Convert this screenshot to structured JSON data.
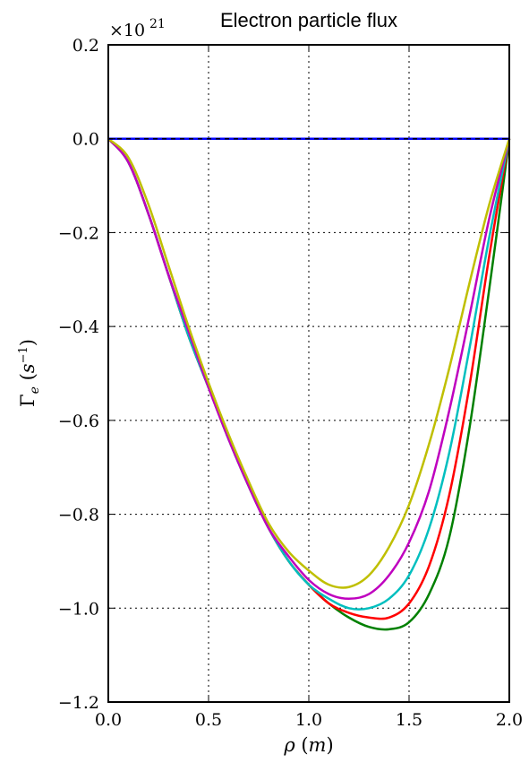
{
  "chart_data": {
    "type": "line",
    "title": "Electron particle flux",
    "xlabel": "ρ (m)",
    "ylabel": "Γe (s⁻¹)",
    "xlim": [
      0.0,
      2.0
    ],
    "ylim": [
      -1.2,
      0.2
    ],
    "y_scale_label": "×10^21",
    "x_ticks": [
      0.0,
      0.5,
      1.0,
      1.5,
      2.0
    ],
    "x_tick_labels": [
      "0.0",
      "0.5",
      "1.0",
      "1.5",
      "2.0"
    ],
    "y_ticks": [
      0.2,
      0.0,
      -0.2,
      -0.4,
      -0.6,
      -0.8,
      -1.0,
      -1.2
    ],
    "y_tick_labels": [
      "0.2",
      "0.0",
      "−0.2",
      "−0.4",
      "−0.6",
      "−0.8",
      "−1.0",
      "−1.2"
    ],
    "grid": true,
    "series": [
      {
        "color": "#0000ff",
        "dashed": false,
        "x": [
          0.0,
          2.0
        ],
        "y": [
          0.0,
          0.0
        ]
      },
      {
        "color": "#000000",
        "dashed": true,
        "x": [
          0.0,
          2.0
        ],
        "y": [
          0.0,
          0.0
        ]
      },
      {
        "color": "#008000",
        "dashed": false,
        "x": [
          0.0,
          0.1,
          0.2,
          0.3,
          0.4,
          0.5,
          0.6,
          0.7,
          0.8,
          0.9,
          1.0,
          1.1,
          1.2,
          1.3,
          1.4,
          1.5,
          1.6,
          1.7,
          1.8,
          1.9,
          2.0
        ],
        "y": [
          0.0,
          -0.05,
          -0.16,
          -0.29,
          -0.42,
          -0.53,
          -0.64,
          -0.74,
          -0.83,
          -0.9,
          -0.95,
          -0.99,
          -1.02,
          -1.04,
          -1.045,
          -1.03,
          -0.97,
          -0.85,
          -0.62,
          -0.32,
          0.0
        ]
      },
      {
        "color": "#ff0000",
        "dashed": false,
        "x": [
          0.0,
          0.1,
          0.2,
          0.3,
          0.4,
          0.5,
          0.6,
          0.7,
          0.8,
          0.9,
          1.0,
          1.1,
          1.2,
          1.3,
          1.4,
          1.5,
          1.6,
          1.7,
          1.8,
          1.9,
          2.0
        ],
        "y": [
          0.0,
          -0.05,
          -0.16,
          -0.29,
          -0.42,
          -0.53,
          -0.64,
          -0.74,
          -0.83,
          -0.9,
          -0.95,
          -0.99,
          -1.01,
          -1.02,
          -1.02,
          -0.99,
          -0.91,
          -0.76,
          -0.53,
          -0.25,
          0.0
        ]
      },
      {
        "color": "#00bfbf",
        "dashed": false,
        "x": [
          0.0,
          0.1,
          0.2,
          0.3,
          0.4,
          0.5,
          0.6,
          0.7,
          0.8,
          0.9,
          1.0,
          1.1,
          1.2,
          1.3,
          1.4,
          1.5,
          1.6,
          1.7,
          1.8,
          1.9,
          2.0
        ],
        "y": [
          0.0,
          -0.05,
          -0.16,
          -0.29,
          -0.42,
          -0.53,
          -0.64,
          -0.74,
          -0.83,
          -0.9,
          -0.95,
          -0.98,
          -1.0,
          -1.0,
          -0.98,
          -0.93,
          -0.83,
          -0.67,
          -0.45,
          -0.21,
          0.0
        ]
      },
      {
        "color": "#bf00bf",
        "dashed": false,
        "x": [
          0.0,
          0.1,
          0.2,
          0.3,
          0.4,
          0.5,
          0.6,
          0.7,
          0.8,
          0.9,
          1.0,
          1.1,
          1.2,
          1.3,
          1.4,
          1.5,
          1.6,
          1.7,
          1.8,
          1.9,
          2.0
        ],
        "y": [
          0.0,
          -0.05,
          -0.16,
          -0.29,
          -0.41,
          -0.53,
          -0.64,
          -0.74,
          -0.83,
          -0.89,
          -0.94,
          -0.97,
          -0.98,
          -0.97,
          -0.93,
          -0.86,
          -0.75,
          -0.58,
          -0.38,
          -0.17,
          0.0
        ]
      },
      {
        "color": "#bfbf00",
        "dashed": false,
        "x": [
          0.0,
          0.1,
          0.2,
          0.3,
          0.4,
          0.5,
          0.6,
          0.7,
          0.8,
          0.9,
          1.0,
          1.1,
          1.2,
          1.3,
          1.4,
          1.5,
          1.6,
          1.7,
          1.8,
          1.9,
          2.0
        ],
        "y": [
          0.0,
          -0.04,
          -0.14,
          -0.27,
          -0.4,
          -0.52,
          -0.63,
          -0.73,
          -0.82,
          -0.88,
          -0.92,
          -0.95,
          -0.955,
          -0.93,
          -0.87,
          -0.78,
          -0.65,
          -0.49,
          -0.31,
          -0.14,
          0.0
        ]
      }
    ]
  }
}
